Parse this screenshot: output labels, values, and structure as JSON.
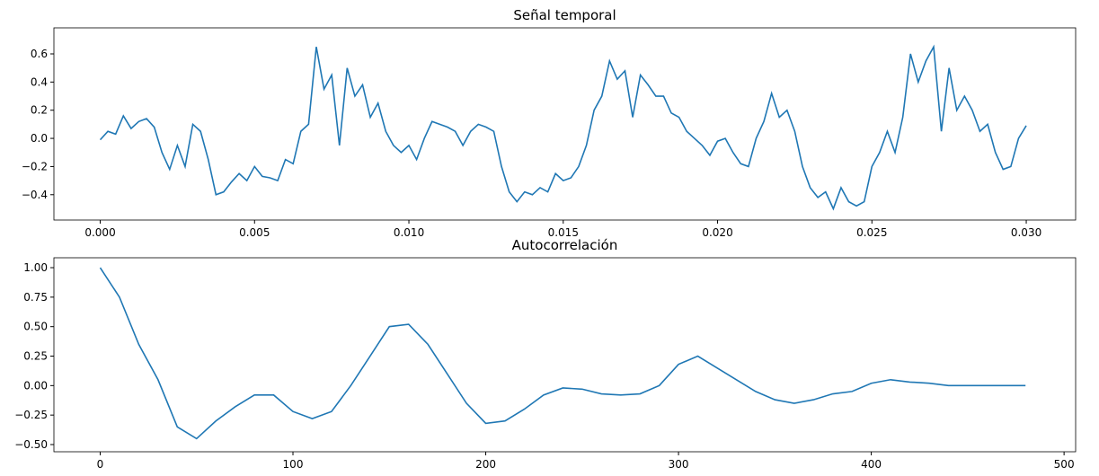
{
  "chart_data": [
    {
      "type": "line",
      "title": "Señal temporal",
      "color": "#1f77b4",
      "x": [
        0,
        0.00025,
        0.0005,
        0.00075,
        0.001,
        0.00125,
        0.0015,
        0.00175,
        0.002,
        0.00225,
        0.0025,
        0.00275,
        0.003,
        0.00325,
        0.0035,
        0.00375,
        0.004,
        0.00425,
        0.0045,
        0.00475,
        0.005,
        0.00525,
        0.0055,
        0.00575,
        0.006,
        0.00625,
        0.0065,
        0.00675,
        0.007,
        0.00725,
        0.0075,
        0.00775,
        0.008,
        0.00825,
        0.0085,
        0.00875,
        0.009,
        0.00925,
        0.0095,
        0.00975,
        0.01,
        0.01025,
        0.0105,
        0.01075,
        0.011,
        0.01125,
        0.0115,
        0.01175,
        0.012,
        0.01225,
        0.0125,
        0.01275,
        0.013,
        0.01325,
        0.0135,
        0.01375,
        0.014,
        0.01425,
        0.0145,
        0.01475,
        0.015,
        0.01525,
        0.0155,
        0.01575,
        0.016,
        0.01625,
        0.0165,
        0.01675,
        0.017,
        0.01725,
        0.0175,
        0.01775,
        0.018,
        0.01825,
        0.0185,
        0.01875,
        0.019,
        0.01925,
        0.0195,
        0.01975,
        0.02,
        0.02025,
        0.0205,
        0.02075,
        0.021,
        0.02125,
        0.0215,
        0.02175,
        0.022,
        0.02225,
        0.0225,
        0.02275,
        0.023,
        0.02325,
        0.0235,
        0.02375,
        0.024,
        0.02425,
        0.0245,
        0.02475,
        0.025,
        0.02525,
        0.0255,
        0.02575,
        0.026,
        0.02625,
        0.0265,
        0.02675,
        0.027,
        0.02725,
        0.0275,
        0.02775,
        0.028,
        0.02825,
        0.0285,
        0.02875,
        0.029,
        0.02925,
        0.0295,
        0.02975,
        0.03
      ],
      "values": [
        -0.01,
        0.05,
        0.03,
        0.16,
        0.07,
        0.12,
        0.14,
        0.08,
        -0.1,
        -0.22,
        -0.05,
        -0.2,
        0.1,
        0.05,
        -0.15,
        -0.4,
        -0.38,
        -0.31,
        -0.25,
        -0.3,
        -0.2,
        -0.27,
        -0.28,
        -0.3,
        -0.15,
        -0.18,
        0.05,
        0.1,
        0.65,
        0.35,
        0.45,
        -0.05,
        0.5,
        0.3,
        0.38,
        0.15,
        0.25,
        0.05,
        -0.05,
        -0.1,
        -0.05,
        -0.15,
        0.0,
        0.12,
        0.1,
        0.08,
        0.05,
        -0.05,
        0.05,
        0.1,
        0.08,
        0.05,
        -0.2,
        -0.38,
        -0.45,
        -0.38,
        -0.4,
        -0.35,
        -0.38,
        -0.25,
        -0.3,
        -0.28,
        -0.2,
        -0.05,
        0.2,
        0.3,
        0.55,
        0.42,
        0.48,
        0.15,
        0.45,
        0.38,
        0.3,
        0.3,
        0.18,
        0.15,
        0.05,
        0.0,
        -0.05,
        -0.12,
        -0.02,
        0.0,
        -0.1,
        -0.18,
        -0.2,
        0.0,
        0.12,
        0.32,
        0.15,
        0.2,
        0.05,
        -0.2,
        -0.35,
        -0.42,
        -0.38,
        -0.5,
        -0.35,
        -0.45,
        -0.48,
        -0.45,
        -0.2,
        -0.1,
        0.05,
        -0.1,
        0.15,
        0.6,
        0.4,
        0.55,
        0.65,
        0.05,
        0.5,
        0.2,
        0.3,
        0.2,
        0.05,
        0.1,
        -0.1,
        -0.22,
        -0.2,
        0.0,
        0.09
      ],
      "xlim": [
        -0.0015,
        0.0316
      ],
      "ylim": [
        -0.58,
        0.785
      ],
      "xticks": [
        {
          "value": 0,
          "label": "0.000"
        },
        {
          "value": 0.005,
          "label": "0.005"
        },
        {
          "value": 0.01,
          "label": "0.010"
        },
        {
          "value": 0.015,
          "label": "0.015"
        },
        {
          "value": 0.02,
          "label": "0.020"
        },
        {
          "value": 0.025,
          "label": "0.025"
        },
        {
          "value": 0.03,
          "label": "0.030"
        }
      ],
      "yticks": [
        {
          "value": -0.4,
          "label": "−0.4"
        },
        {
          "value": -0.2,
          "label": "−0.2"
        },
        {
          "value": 0,
          "label": "0.0"
        },
        0.2,
        0.4,
        0.6
      ]
    },
    {
      "type": "line",
      "title": "Autocorrelación",
      "color": "#1f77b4",
      "x": [
        0,
        10,
        20,
        30,
        40,
        50,
        60,
        70,
        80,
        90,
        100,
        110,
        120,
        130,
        140,
        150,
        160,
        170,
        180,
        190,
        200,
        210,
        220,
        230,
        240,
        250,
        260,
        270,
        280,
        290,
        300,
        310,
        320,
        330,
        340,
        350,
        360,
        370,
        380,
        390,
        400,
        410,
        420,
        430,
        440,
        450,
        460,
        470,
        480
      ],
      "values": [
        1.0,
        0.75,
        0.35,
        0.05,
        -0.35,
        -0.45,
        -0.3,
        -0.18,
        -0.08,
        -0.08,
        -0.22,
        -0.28,
        -0.22,
        0.0,
        0.25,
        0.5,
        0.52,
        0.35,
        0.1,
        -0.15,
        -0.32,
        -0.3,
        -0.2,
        -0.08,
        -0.02,
        -0.03,
        -0.07,
        -0.08,
        -0.07,
        0.0,
        0.18,
        0.25,
        0.15,
        0.05,
        -0.05,
        -0.12,
        -0.15,
        -0.12,
        -0.07,
        -0.05,
        0.02,
        0.05,
        0.03,
        0.02,
        0.0,
        0.0,
        0.0,
        0.0,
        0.0
      ],
      "xlim": [
        -24,
        506
      ],
      "ylim": [
        -0.561,
        1.084
      ],
      "xticks": [
        0,
        100,
        200,
        300,
        400,
        500
      ],
      "yticks": [
        {
          "value": -0.5,
          "label": "−0.50"
        },
        {
          "value": -0.25,
          "label": "−0.25"
        },
        {
          "value": 0,
          "label": "0.00"
        },
        {
          "value": 0.25,
          "label": "0.25"
        },
        {
          "value": 0.5,
          "label": "0.50"
        },
        {
          "value": 0.75,
          "label": "0.75"
        },
        {
          "value": 1,
          "label": "1.00"
        }
      ]
    }
  ]
}
